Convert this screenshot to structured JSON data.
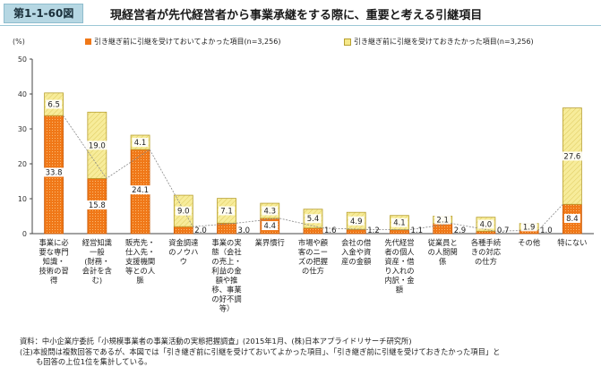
{
  "figure": {
    "number": "第1-1-60図",
    "title": "現経営者が先代経営者から事業承継をする際に、重要と考える引継項目"
  },
  "notes": {
    "source": "資料：中小企業庁委託「小規模事業者の事業活動の実態把握調査」(2015年1月、(株)日本アプライドリサーチ研究所)",
    "note_line1": "(注)本設問は複数回答であるが、本図では「引き継ぎ前に引継を受けておいてよかった項目」、「引き継ぎ前に引継を受けておきたかった項目」と",
    "note_line2": "も回答の上位1位を集計している。"
  },
  "colors": {
    "series1": "#f07818",
    "series2": "#f5e88a",
    "series1_stroke": "#c85a08",
    "series2_stroke": "#b8a030"
  },
  "chart_data": {
    "type": "bar",
    "stacked": true,
    "unit_label": "(%)",
    "ylim": [
      0,
      50
    ],
    "yticks": [
      0,
      10,
      20,
      30,
      40,
      50
    ],
    "grid": false,
    "categories": [
      [
        "事業に必",
        "要な専門",
        "知識・",
        "技術の習",
        "得"
      ],
      [
        "経営知識",
        "一般",
        "(財務・",
        "会計を含",
        "む)"
      ],
      [
        "販売先・",
        "仕入先・",
        "支援機関",
        "等との人",
        "脈"
      ],
      [
        "資金調達",
        "のノウハ",
        "ウ"
      ],
      [
        "事業の実",
        "態（会社",
        "の売上・",
        "利益の金",
        "額や推",
        "移、事業",
        "の好不調",
        "等）"
      ],
      [
        "業界慣行"
      ],
      [
        "市場や顧",
        "客のニー",
        "ズの把握",
        "の仕方"
      ],
      [
        "会社の借",
        "入金や資",
        "産の金額"
      ],
      [
        "先代経営",
        "者の個人",
        "資産・借",
        "り入れの",
        "内訳・金",
        "額"
      ],
      [
        "従業員と",
        "の人間関",
        "係"
      ],
      [
        "各種手続",
        "きの対応",
        "の仕方"
      ],
      [
        "その他"
      ],
      [
        "特にない"
      ]
    ],
    "series": [
      {
        "name": "引き継ぎ前に引継を受けておいてよかった項目(n=3,256)",
        "values": [
          33.8,
          15.8,
          24.1,
          2.0,
          3.0,
          4.4,
          1.6,
          1.2,
          1.1,
          2.9,
          0.7,
          1.0,
          8.4
        ],
        "labels": [
          "33.8",
          "15.8",
          "24.1",
          "2.0",
          "3.0",
          "4.4",
          "1.6",
          "1.2",
          "1.1",
          "2.9",
          "0.7",
          "1.0",
          "8.4"
        ]
      },
      {
        "name": "引き継ぎ前に引継を受けておきたかった項目(n=3,256)",
        "values": [
          6.5,
          19.0,
          4.1,
          9.0,
          7.1,
          4.3,
          5.4,
          4.9,
          4.1,
          2.1,
          4.0,
          1.9,
          27.6
        ],
        "labels": [
          "6.5",
          "19.0",
          "4.1",
          "9.0",
          "7.1",
          "4.3",
          "5.4",
          "4.9",
          "4.1",
          "2.1",
          "4.0",
          "1.9",
          "27.6"
        ]
      }
    ],
    "trend_line": "series1"
  }
}
